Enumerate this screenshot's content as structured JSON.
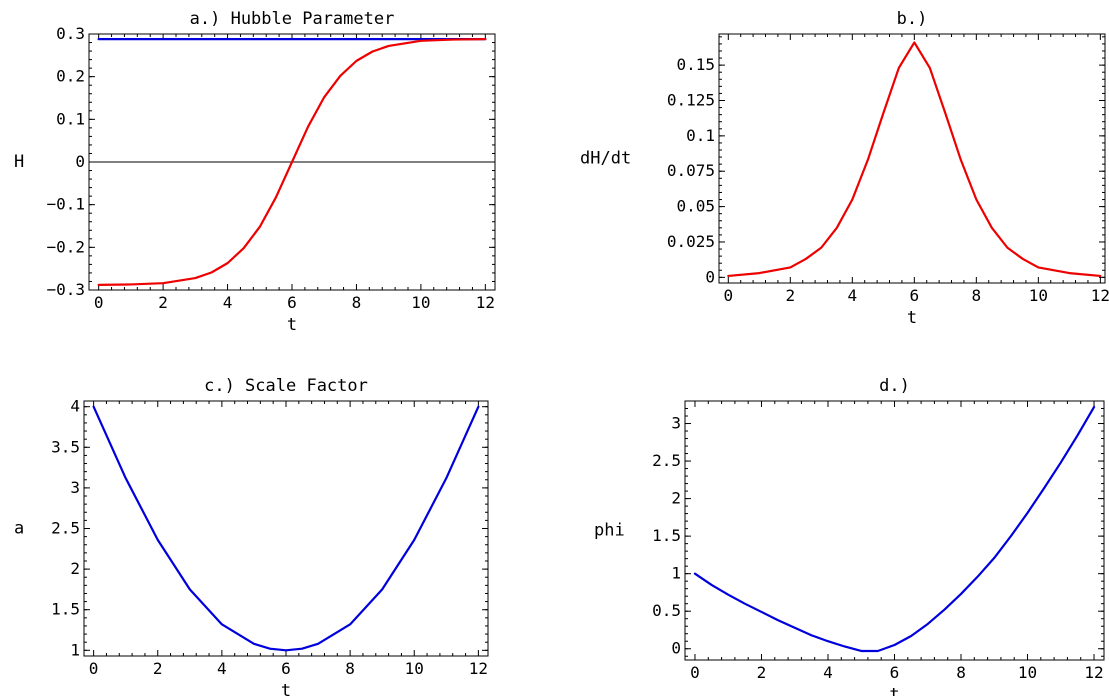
{
  "chart_data": [
    {
      "id": "a",
      "type": "line",
      "title": "a.) Hubble Parameter",
      "xlabel": "t",
      "ylabel": "H",
      "xlim": [
        -0.3,
        12.3
      ],
      "ylim": [
        -0.3,
        0.3
      ],
      "xticks": [
        0,
        2,
        4,
        6,
        8,
        10,
        12
      ],
      "xtick_labels": [
        "0",
        "2",
        "4",
        "6",
        "8",
        "10",
        "12"
      ],
      "yticks": [
        0.3,
        0.2,
        0.1,
        0,
        -0.1,
        -0.2,
        -0.3
      ],
      "ytick_labels": [
        "0.3",
        "0.2",
        "0.1",
        "0",
        "−0.1",
        "−0.2",
        "−0.3"
      ],
      "zero_line": true,
      "grid": false,
      "series": [
        {
          "color": "#0000dd",
          "x": [
            0,
            12
          ],
          "y": [
            0.288,
            0.288
          ]
        },
        {
          "color": "#ee0000",
          "x": [
            0,
            1,
            2,
            3,
            3.5,
            4,
            4.5,
            5,
            5.5,
            6,
            6.5,
            7,
            7.5,
            8,
            8.5,
            9,
            10,
            11,
            12
          ],
          "y": [
            -0.288,
            -0.287,
            -0.284,
            -0.272,
            -0.259,
            -0.237,
            -0.202,
            -0.152,
            -0.083,
            0.0,
            0.083,
            0.152,
            0.202,
            0.237,
            0.259,
            0.272,
            0.284,
            0.287,
            0.288
          ]
        }
      ]
    },
    {
      "id": "b",
      "type": "line",
      "title": "b.)",
      "xlabel": "t",
      "ylabel": "dH/dt",
      "xlim": [
        -0.3,
        12.15
      ],
      "ylim": [
        -0.004,
        0.172
      ],
      "xticks": [
        0,
        2,
        4,
        6,
        8,
        10,
        12
      ],
      "xtick_labels": [
        "0",
        "2",
        "4",
        "6",
        "8",
        "10",
        "12"
      ],
      "yticks": [
        0.15,
        0.125,
        0.1,
        0.075,
        0.05,
        0.025,
        0
      ],
      "ytick_labels": [
        "0.15",
        "0.125",
        "0.1",
        "0.075",
        "0.05",
        "0.025",
        "0"
      ],
      "zero_line": false,
      "grid": false,
      "series": [
        {
          "color": "#ee0000",
          "x": [
            0,
            1,
            2,
            2.5,
            3,
            3.5,
            4,
            4.5,
            5,
            5.5,
            6,
            6.5,
            7,
            7.5,
            8,
            8.5,
            9,
            9.5,
            10,
            11,
            12
          ],
          "y": [
            0.001,
            0.003,
            0.007,
            0.013,
            0.021,
            0.035,
            0.055,
            0.083,
            0.116,
            0.148,
            0.166,
            0.148,
            0.116,
            0.083,
            0.055,
            0.035,
            0.021,
            0.013,
            0.007,
            0.003,
            0.001
          ]
        }
      ]
    },
    {
      "id": "c",
      "type": "line",
      "title": "c.) Scale Factor",
      "xlabel": "t",
      "ylabel": "a",
      "xlim": [
        -0.3,
        12.3
      ],
      "ylim": [
        0.93,
        4.07
      ],
      "xticks": [
        0,
        2,
        4,
        6,
        8,
        10,
        12
      ],
      "xtick_labels": [
        "0",
        "2",
        "4",
        "6",
        "8",
        "10",
        "12"
      ],
      "yticks": [
        4,
        3.5,
        3,
        2.5,
        2,
        1.5,
        1
      ],
      "ytick_labels": [
        "4",
        "3.5",
        "3",
        "2.5",
        "2",
        "1.5",
        "1"
      ],
      "zero_line": false,
      "grid": false,
      "series": [
        {
          "color": "#0000dd",
          "x": [
            0,
            1,
            2,
            3,
            4,
            5,
            5.5,
            6,
            6.5,
            7,
            8,
            9,
            10,
            11,
            12
          ],
          "y": [
            4.0,
            3.12,
            2.36,
            1.75,
            1.32,
            1.08,
            1.02,
            1.0,
            1.02,
            1.08,
            1.32,
            1.75,
            2.36,
            3.12,
            4.0
          ]
        }
      ]
    },
    {
      "id": "d",
      "type": "line",
      "title": "d.)",
      "xlabel": "t",
      "ylabel": "phi",
      "xlim": [
        -0.3,
        12.3
      ],
      "ylim": [
        -0.15,
        3.3
      ],
      "xticks": [
        0,
        2,
        4,
        6,
        8,
        10,
        12
      ],
      "xtick_labels": [
        "0",
        "2",
        "4",
        "6",
        "8",
        "10",
        "12"
      ],
      "yticks": [
        3,
        2.5,
        2,
        1.5,
        1,
        0.5,
        0
      ],
      "ytick_labels": [
        "3",
        "2.5",
        "2",
        "1.5",
        "1",
        "0.5",
        "0"
      ],
      "zero_line": false,
      "grid": false,
      "series": [
        {
          "color": "#0000dd",
          "x": [
            0,
            0.5,
            1,
            1.5,
            2,
            2.5,
            3,
            3.5,
            4,
            4.5,
            5,
            5.5,
            6,
            6.5,
            7,
            7.5,
            8,
            8.5,
            9,
            9.5,
            10,
            10.5,
            11,
            11.5,
            12
          ],
          "y": [
            1.0,
            0.85,
            0.72,
            0.6,
            0.49,
            0.38,
            0.28,
            0.18,
            0.1,
            0.03,
            -0.03,
            -0.03,
            0.05,
            0.17,
            0.33,
            0.52,
            0.73,
            0.96,
            1.21,
            1.5,
            1.81,
            2.14,
            2.48,
            2.84,
            3.22
          ]
        }
      ]
    }
  ]
}
